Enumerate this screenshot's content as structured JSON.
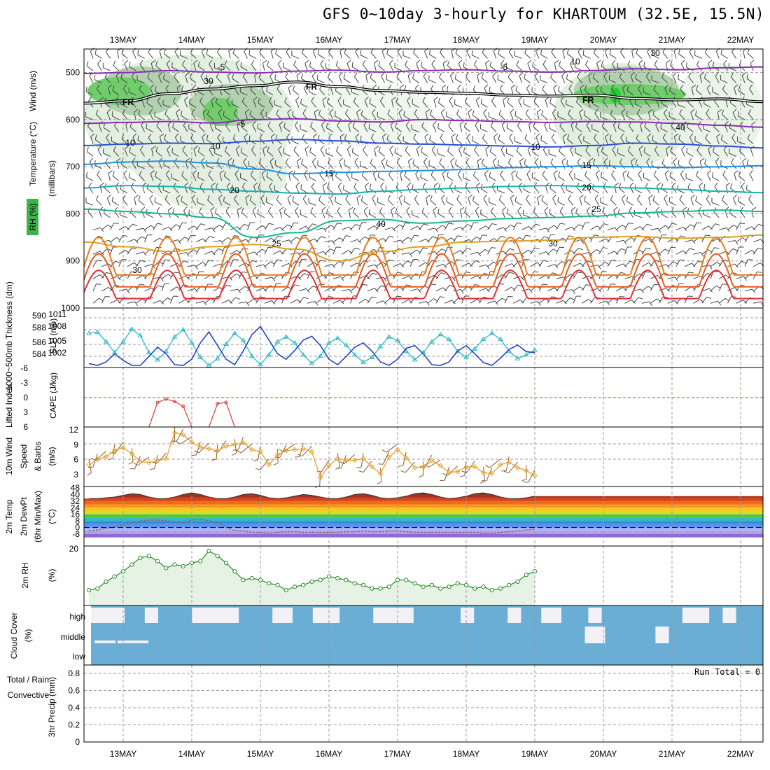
{
  "header": {
    "title": "GFS 0~10day 3-hourly for KHARTOUM (32.5E, 15.5N)"
  },
  "colors": {
    "rh_green": "#3cb44b",
    "temp_purple": "#8b2bb2",
    "temp_blue": "#2b4fd4",
    "temp_lightblue": "#1f8fe0",
    "temp_cyan": "#16b2b0",
    "temp_teal": "#14b890",
    "temp_gold": "#e0a020",
    "temp_orange": "#ea7a1c",
    "temp_red": "#e23030",
    "thickness": "#2cb8c2",
    "slp": "#2244cc",
    "lifted": "#e03a3a",
    "wind10": "#e8a030",
    "rh2m": "#2a8a2a",
    "cloud": "#6aaed6",
    "precip_rain": "#1ea01e",
    "precip_conv": "#e02020"
  },
  "chart_data": [
    {
      "type": "heatmap",
      "panel": "upper-air",
      "x_dates": [
        "13MAY",
        "14MAY",
        "15MAY",
        "16MAY",
        "17MAY",
        "18MAY",
        "19MAY",
        "20MAY",
        "21MAY",
        "22MAY"
      ],
      "ylabel_parts": [
        "RH (%)",
        "Temperature (°C)",
        "Wind (m/s)"
      ],
      "ylabel_unit": "(millibars)",
      "y_ticks": [
        500,
        600,
        700,
        800,
        900,
        1000
      ],
      "ylim": [
        450,
        1000
      ],
      "freezing_label": "FR",
      "rh_labels": [
        "30",
        "10",
        "40"
      ],
      "contour_labels": [
        {
          "value": "-5",
          "color": "#8b2bb2"
        },
        {
          "value": "-5",
          "color": "#8b2bb2"
        },
        {
          "value": "-5",
          "color": "#8b2bb2"
        },
        {
          "value": "10",
          "color": "#2b4fd4"
        },
        {
          "value": "10",
          "color": "#2b4fd4"
        },
        {
          "value": "15",
          "color": "#1f8fe0"
        },
        {
          "value": "15",
          "color": "#1f8fe0"
        },
        {
          "value": "20",
          "color": "#16b2b0"
        },
        {
          "value": "20",
          "color": "#16b2b0"
        },
        {
          "value": "25",
          "color": "#14b890"
        },
        {
          "value": "25",
          "color": "#14b890"
        },
        {
          "value": "30",
          "color": "#e0a020"
        },
        {
          "value": "30",
          "color": "#e0a020"
        }
      ],
      "isotherms": [
        {
          "temp": "-5",
          "p": [
            502,
            500,
            496,
            499,
            501,
            497,
            495,
            499,
            496,
            494,
            497,
            499,
            496,
            492,
            494,
            490,
            488
          ]
        },
        {
          "temp": "FR",
          "p": [
            565,
            560,
            545,
            535,
            528,
            520,
            530,
            538,
            542,
            544,
            548,
            550,
            548,
            555,
            558,
            556,
            562
          ]
        },
        {
          "temp": "-5",
          "p": [
            608,
            606,
            604,
            607,
            600,
            598,
            603,
            605,
            600,
            602,
            604,
            606,
            604,
            605,
            608,
            612,
            616
          ]
        },
        {
          "temp": "10",
          "p": [
            655,
            652,
            650,
            651,
            646,
            642,
            645,
            650,
            652,
            654,
            656,
            658,
            655,
            650,
            652,
            656,
            660
          ]
        },
        {
          "temp": "15",
          "p": [
            695,
            690,
            688,
            692,
            705,
            715,
            712,
            710,
            708,
            706,
            702,
            700,
            698,
            700,
            702,
            700,
            698
          ]
        },
        {
          "temp": "20",
          "p": [
            745,
            740,
            742,
            748,
            752,
            756,
            758,
            752,
            748,
            745,
            742,
            740,
            742,
            745,
            748,
            752,
            755
          ]
        },
        {
          "temp": "25",
          "p": [
            790,
            795,
            800,
            808,
            850,
            840,
            815,
            812,
            820,
            815,
            810,
            808,
            805,
            798,
            795,
            792,
            795
          ]
        },
        {
          "temp": "30",
          "p": [
            860,
            870,
            880,
            870,
            865,
            875,
            900,
            880,
            870,
            860,
            858,
            856,
            850,
            848,
            852,
            850,
            845
          ]
        }
      ]
    },
    {
      "type": "line",
      "panel": "thickness-slp",
      "ylabel_left": "1000~500mb Thickness (dm)",
      "ylabel_right": "SLP (mb)",
      "left_ticks": [
        "590",
        "588",
        "586",
        "584"
      ],
      "right_ticks": [
        "1011",
        "1008",
        "1005",
        "1002"
      ],
      "series": [
        {
          "name": "1000~500mb Thickness (dm)",
          "values": [
            589.2,
            589.4,
            587.8,
            586.0,
            587.8,
            589.9,
            588.8,
            586.0,
            584.8,
            586.2,
            588.6,
            589.8,
            587.6,
            585.2,
            583.8,
            585.0,
            587.4,
            589.2,
            588.0,
            585.4,
            584.0,
            585.6,
            587.8,
            588.6,
            587.6,
            585.6,
            584.2,
            585.4,
            587.6,
            588.4,
            587.2,
            585.6,
            584.4,
            585.2,
            587.0,
            588.6,
            588.0,
            586.2,
            584.8,
            586.0,
            587.8,
            589.0,
            588.2,
            586.2,
            585.2,
            586.6,
            588.2,
            589.2,
            588.2,
            586.2,
            585.0,
            585.6,
            586.4
          ]
        },
        {
          "name": "SLP (mb)",
          "values": [
            1003.2,
            1002.4,
            1003.5,
            1005.0,
            1003.8,
            1001.5,
            1002.5,
            1004.5,
            1006.2,
            1005.0,
            1003.0,
            1002.0,
            1004.0,
            1007.0,
            1009.0,
            1006.5,
            1004.0,
            1003.0,
            1005.5,
            1008.5,
            1010.0,
            1007.5,
            1005.0,
            1004.0,
            1005.6,
            1007.5,
            1008.2,
            1006.5,
            1004.0,
            1003.0,
            1004.5,
            1006.2,
            1007.0,
            1005.5,
            1003.5,
            1002.5,
            1004.0,
            1006.0,
            1006.5,
            1005.0,
            1003.0,
            1002.0,
            1003.5,
            1005.5,
            1006.5,
            1005.0,
            1003.4,
            1002.8,
            1004.2,
            1005.8,
            1006.6,
            1005.4,
            1005.2
          ]
        }
      ]
    },
    {
      "type": "line",
      "panel": "lifted-index",
      "ylabel_left": "Lifted Index",
      "ylabel_right": "CAPE (J/kg)",
      "y_ticks": [
        "-6",
        "-3",
        "0",
        "3",
        "6"
      ],
      "series": [
        {
          "name": "Lifted Index",
          "segments": [
            {
              "x_idx": [
                7,
                8,
                9,
                10,
                11,
                12
              ],
              "values": [
                6,
                1,
                0.3,
                0.8,
                1.8,
                6
              ]
            },
            {
              "x_idx": [
                14,
                15,
                16,
                17
              ],
              "values": [
                6,
                1.2,
                1.0,
                6
              ]
            }
          ]
        }
      ]
    },
    {
      "type": "line",
      "panel": "wind10m",
      "ylabel_parts": [
        "10m Wind",
        "Speed",
        "& Barbs",
        "(m/s)"
      ],
      "y_ticks": [
        "12",
        "9",
        "6",
        "3"
      ],
      "series": [
        {
          "name": "10m Wind Speed",
          "values": [
            5.0,
            6.0,
            6.6,
            7.9,
            8.4,
            7.2,
            5.6,
            5.4,
            5.8,
            6.2,
            11.4,
            11.0,
            9.5,
            8.5,
            8.2,
            7.8,
            8.7,
            9.0,
            9.4,
            8.0,
            7.6,
            5.0,
            7.0,
            7.8,
            8.0,
            8.2,
            7.6,
            2.4,
            4.8,
            6.2,
            5.8,
            5.9,
            6.2,
            4.6,
            3.2,
            6.5,
            8.0,
            6.4,
            4.4,
            4.5,
            5.8,
            4.8,
            3.4,
            3.6,
            4.5,
            4.6,
            3.4,
            3.2,
            5.0,
            5.5,
            4.4,
            3.8,
            2.8
          ]
        }
      ]
    },
    {
      "type": "area",
      "panel": "temperature-2m",
      "ylabel_parts": [
        "2m Temp",
        "2m DewPt",
        "(6hr Min/Max)",
        "(°C)"
      ],
      "y_ticks": [
        "48",
        "40",
        "32",
        "24",
        "16",
        "8",
        "0",
        "-8"
      ],
      "series": [
        {
          "name": "2m Temp",
          "values": [
            35,
            35,
            36,
            37,
            39,
            41,
            40,
            37,
            35,
            35,
            37,
            40,
            42,
            40,
            37,
            35,
            35,
            37,
            40,
            41,
            39,
            36,
            35,
            36,
            38,
            40,
            39,
            37,
            35,
            35,
            37,
            40,
            41,
            39,
            36,
            35,
            36,
            38,
            41,
            42,
            40,
            37,
            35,
            36,
            38,
            41,
            42,
            40,
            37,
            35,
            35,
            36,
            38
          ]
        },
        {
          "name": "2m DewPt",
          "values": [
            -4,
            -3,
            -1,
            1,
            3,
            6,
            8,
            9,
            9,
            8,
            7,
            6,
            9,
            10,
            8,
            6,
            0,
            -4,
            -4,
            -6,
            -6,
            -7,
            -6,
            -5,
            -5,
            -6,
            -6,
            -6,
            -6,
            -6,
            -5,
            -5,
            -4,
            -5,
            -5,
            -4,
            -4,
            -5,
            -6,
            -6,
            -6,
            -6,
            -6,
            -6,
            -6,
            -6,
            -7,
            -7,
            -6,
            -5,
            -4,
            -3,
            -2
          ]
        }
      ]
    },
    {
      "type": "area",
      "panel": "rh2m",
      "ylabel_parts": [
        "2m RH",
        "(%)"
      ],
      "y_ticks": [
        "20"
      ],
      "series": [
        {
          "name": "2m RH",
          "values": [
            2,
            3,
            7,
            10,
            13,
            17,
            21,
            22,
            19,
            15,
            17,
            16,
            18,
            19,
            25,
            22,
            18,
            13,
            8,
            9,
            8,
            6,
            5,
            2,
            4,
            5,
            7,
            8,
            10,
            9,
            8,
            6,
            5,
            3,
            3,
            4,
            8,
            8,
            6,
            4,
            5,
            3,
            4,
            6,
            5,
            3,
            4,
            2,
            3,
            5,
            7,
            11,
            13
          ]
        }
      ]
    },
    {
      "type": "heatmap",
      "panel": "cloud-cover",
      "ylabel_parts": [
        "Cloud Cover",
        "(%)"
      ],
      "y_levels": [
        "high",
        "middle",
        "low"
      ],
      "high_clear_segments": [
        [
          0.0,
          0.05
        ],
        [
          0.08,
          0.1
        ],
        [
          0.15,
          0.22
        ],
        [
          0.27,
          0.3
        ],
        [
          0.33,
          0.37
        ],
        [
          0.42,
          0.48
        ],
        [
          0.55,
          0.57
        ],
        [
          0.62,
          0.64
        ],
        [
          0.67,
          0.7
        ],
        [
          0.74,
          0.76
        ],
        [
          0.88,
          0.92
        ],
        [
          0.94,
          0.96
        ]
      ],
      "middle_clear_segments": [
        [
          0.735,
          0.765
        ],
        [
          0.84,
          0.86
        ]
      ]
    },
    {
      "type": "line",
      "panel": "precip",
      "ylabel_parts": [
        "Total / Rain",
        "Convective",
        "3hr Precip (mm)"
      ],
      "run_total_label": "Run Total = 0",
      "y_ticks": [
        "0.8",
        "0.6",
        "0.4",
        "0.2",
        "0"
      ],
      "ylim": [
        0,
        0.9
      ],
      "series": []
    }
  ]
}
